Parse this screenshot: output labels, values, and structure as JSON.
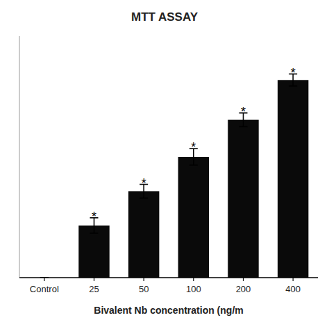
{
  "chart_data": {
    "type": "bar",
    "title": "MTT ASSAY",
    "xlabel": "Bivalent Nb concentration (ng/m",
    "categories": [
      "Control",
      "25",
      "50",
      "100",
      "200",
      "400"
    ],
    "values": [
      0.0,
      0.19,
      0.315,
      0.44,
      0.575,
      0.72
    ],
    "errors": [
      0.0,
      0.028,
      0.025,
      0.03,
      0.025,
      0.022
    ],
    "color": "#0a0a0a",
    "ylim": [
      0,
      0.88
    ],
    "yticks": [],
    "grid": false,
    "tick_labels": "x",
    "annotations": [
      {
        "text": "*",
        "x": "25"
      },
      {
        "text": "*",
        "x": "50"
      },
      {
        "text": "*",
        "x": "100"
      },
      {
        "text": "*",
        "x": "200"
      },
      {
        "text": "*",
        "x": "400"
      }
    ]
  }
}
